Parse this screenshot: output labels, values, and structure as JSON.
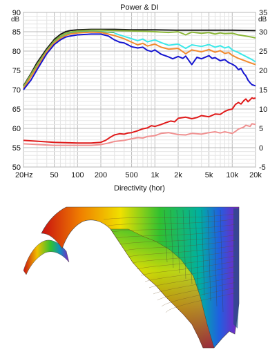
{
  "chart_data": [
    {
      "type": "line",
      "title": "Power & DI",
      "xscale": "log",
      "xlim": [
        20,
        20000
      ],
      "ylim_left": [
        50,
        90
      ],
      "ylim_right": [
        -5,
        35
      ],
      "y_unit_left": "dB",
      "y_unit_right": "dB",
      "grid": true,
      "x_ticks": [
        {
          "value": 20,
          "label": "20Hz"
        },
        {
          "value": 50,
          "label": "50"
        },
        {
          "value": 100,
          "label": "100"
        },
        {
          "value": 200,
          "label": "200"
        },
        {
          "value": 500,
          "label": "500"
        },
        {
          "value": 1000,
          "label": "1k"
        },
        {
          "value": 2000,
          "label": "2k"
        },
        {
          "value": 5000,
          "label": "5k"
        },
        {
          "value": 10000,
          "label": "10k"
        },
        {
          "value": 20000,
          "label": "20k"
        }
      ],
      "y_ticks_left": [
        90,
        85,
        80,
        75,
        70,
        65,
        60,
        55,
        50
      ],
      "y_ticks_right": [
        35,
        30,
        25,
        20,
        15,
        10,
        5,
        0,
        -5
      ],
      "series": [
        {
          "color": "#1a1a1a",
          "axis": "left",
          "x": [
            20,
            25,
            30,
            40,
            50,
            60,
            70,
            80,
            100,
            150,
            200,
            300,
            500,
            1000,
            2000,
            5000,
            10000,
            20000
          ],
          "y": [
            71,
            74.2,
            77,
            80.6,
            83,
            84.3,
            85,
            85.3,
            85.5,
            85.6,
            85.6,
            85.6,
            85.5,
            85.5,
            85.4,
            85.4,
            85.4,
            85.3
          ]
        },
        {
          "color": "#8db83a",
          "axis": "left",
          "x": [
            20,
            30,
            40,
            50,
            60,
            70,
            80,
            100,
            150,
            200,
            300,
            500,
            700,
            1000,
            1500,
            2000,
            2500,
            3000,
            4000,
            5000,
            6000,
            7000,
            8000,
            10000,
            12000,
            15000,
            18000,
            20000
          ],
          "y": [
            70.8,
            76.5,
            80.2,
            82.6,
            83.9,
            84.6,
            84.9,
            85.2,
            85.4,
            85.4,
            85.3,
            85.2,
            85.1,
            85.0,
            84.8,
            85.0,
            84.2,
            84.9,
            84.6,
            84.8,
            84.4,
            84.7,
            84.5,
            84.6,
            84.2,
            83.9,
            83.6,
            83.4
          ]
        },
        {
          "color": "#5cb87a",
          "axis": "left",
          "x": [
            20,
            30,
            40,
            50,
            60,
            70,
            80,
            100,
            150,
            200,
            250,
            300
          ],
          "y": [
            70.5,
            76,
            80,
            82.3,
            83.5,
            84.2,
            84.6,
            84.9,
            85.1,
            85.0,
            84.9,
            84.8
          ]
        },
        {
          "color": "#3de8e8",
          "axis": "left",
          "x": [
            300,
            400,
            500,
            600,
            700,
            800,
            1000,
            1200,
            1500,
            2000,
            2500,
            3000,
            4000,
            5000,
            6000,
            7000,
            8000,
            9000,
            10000,
            12000,
            15000,
            18000,
            20000
          ],
          "y": [
            84.6,
            83.8,
            83.2,
            82.7,
            83.1,
            82.4,
            82.9,
            82.2,
            81.5,
            81.8,
            80.7,
            81.6,
            81.2,
            81.7,
            81.0,
            81.4,
            80.8,
            81.1,
            80.3,
            79.6,
            78.6,
            77.8,
            77.2
          ]
        },
        {
          "color": "#f08a2e",
          "axis": "left",
          "x": [
            20,
            30,
            40,
            50,
            60,
            70,
            80,
            100,
            150,
            200,
            250,
            300,
            400,
            500,
            600,
            700,
            800,
            1000,
            1200,
            1500,
            2000,
            2500,
            3000,
            4000,
            5000,
            6000,
            7000,
            8000,
            9000,
            10000,
            12000,
            15000,
            18000,
            20000
          ],
          "y": [
            70.3,
            75.8,
            79.8,
            82.1,
            83.3,
            84.0,
            84.4,
            84.7,
            84.9,
            84.8,
            84.4,
            84.0,
            83.2,
            82.3,
            81.6,
            82.0,
            81.3,
            81.8,
            81.0,
            80.5,
            80.7,
            79.3,
            80.3,
            79.8,
            80.4,
            79.7,
            80.1,
            79.4,
            79.6,
            78.9,
            78.1,
            77.4,
            76.8,
            76.5
          ]
        },
        {
          "color": "#1515d0",
          "axis": "left",
          "x": [
            20,
            25,
            30,
            40,
            50,
            60,
            70,
            80,
            100,
            150,
            200,
            250,
            300,
            350,
            400,
            450,
            500,
            600,
            700,
            800,
            900,
            1000,
            1200,
            1500,
            1700,
            2000,
            2300,
            2500,
            3000,
            3500,
            4000,
            5000,
            5500,
            6000,
            7000,
            8000,
            9000,
            10000,
            11000,
            12000,
            13000,
            14000,
            15000,
            16000,
            17000,
            18000,
            20000
          ],
          "y": [
            70.0,
            72.5,
            75.2,
            79.3,
            81.7,
            82.9,
            83.6,
            83.9,
            84.2,
            84.4,
            84.4,
            83.9,
            82.9,
            82.3,
            82.1,
            81.6,
            81.1,
            80.8,
            81.0,
            80.2,
            79.9,
            80.3,
            79.2,
            78.5,
            78.0,
            78.6,
            78.1,
            78.7,
            76.5,
            78.4,
            78.0,
            78.8,
            78.1,
            78.3,
            77.5,
            77.8,
            77.0,
            76.6,
            76.1,
            75.2,
            75.5,
            74.3,
            73.6,
            72.5,
            71.8,
            71.3,
            71.0
          ]
        },
        {
          "color": "#e01a1a",
          "axis": "right",
          "x": [
            20,
            50,
            100,
            150,
            200,
            230,
            260,
            300,
            350,
            400,
            450,
            500,
            600,
            700,
            800,
            900,
            1000,
            1200,
            1400,
            1600,
            1800,
            2000,
            2500,
            3000,
            3500,
            4000,
            5000,
            6000,
            7000,
            8000,
            9000,
            10000,
            11000,
            12000,
            13000,
            14000,
            15000,
            16000,
            17000,
            18000,
            19000,
            20000
          ],
          "y": [
            1.9,
            1.4,
            1.2,
            1.2,
            1.4,
            1.9,
            2.6,
            3.3,
            3.6,
            3.5,
            3.8,
            3.9,
            4.4,
            4.9,
            5.1,
            5.7,
            5.5,
            6.0,
            6.5,
            6.9,
            6.7,
            7.6,
            7.9,
            7.5,
            7.8,
            8.3,
            8.0,
            8.7,
            8.6,
            9.4,
            9.8,
            10.0,
            11.2,
            11.7,
            11.3,
            12.1,
            12.6,
            11.9,
            12.4,
            12.9,
            12.7,
            12.9
          ]
        },
        {
          "color": "#f09090",
          "axis": "right",
          "x": [
            20,
            50,
            100,
            150,
            200,
            250,
            300,
            400,
            500,
            600,
            700,
            800,
            1000,
            1200,
            1500,
            2000,
            2500,
            3000,
            4000,
            5000,
            6000,
            7000,
            8000,
            10000,
            11000,
            12000,
            14000,
            15000,
            17000,
            18000,
            20000
          ],
          "y": [
            1.0,
            0.6,
            0.6,
            0.6,
            0.8,
            1.2,
            1.6,
            1.9,
            2.3,
            2.6,
            2.5,
            2.9,
            3.1,
            3.7,
            3.9,
            3.4,
            3.3,
            3.7,
            3.5,
            3.9,
            4.1,
            3.8,
            4.1,
            3.7,
            4.2,
            4.8,
            5.3,
            5.8,
            5.5,
            6.2,
            6.0
          ]
        }
      ]
    },
    {
      "type": "surface",
      "title": "Directivity (hor)",
      "colormap": [
        "#c81010",
        "#f08000",
        "#f0e000",
        "#30c030",
        "#00b0a0",
        "#2060e0",
        "#8020c0"
      ]
    }
  ]
}
